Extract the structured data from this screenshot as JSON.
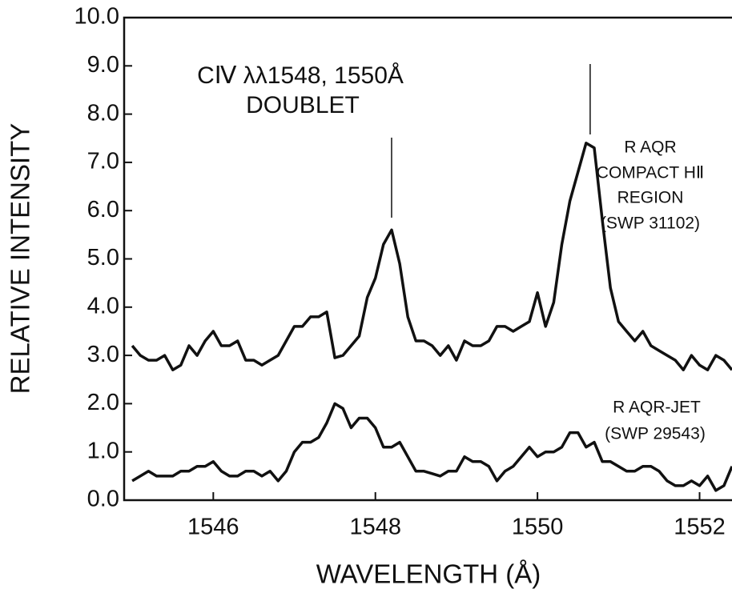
{
  "chart_data": {
    "type": "line",
    "title": "CⅣ λλ1548, 1550Å",
    "subtitle": "DOUBLET",
    "xlabel": "WAVELENGTH (Å)",
    "ylabel": "RELATIVE INTENSITY",
    "annotations": [
      "R AQR",
      "COMPACT HⅡ",
      "REGION",
      "(SWP 31102)",
      "R AQR-JET",
      "(SWP 29543)"
    ],
    "marker_lines": [
      1548.2,
      1550.65
    ],
    "xlim": [
      1544.9,
      1552.4
    ],
    "xticks": [
      1546,
      1548,
      1550,
      1552
    ],
    "ylim": [
      0,
      10
    ],
    "yticks": [
      {
        "value": 0,
        "label": "0.0"
      },
      {
        "value": 1,
        "label": "1.0"
      },
      {
        "value": 2,
        "label": "2.0"
      },
      {
        "value": 3,
        "label": "3.0"
      },
      {
        "value": 4,
        "label": "4.0"
      },
      {
        "value": 5,
        "label": "5.0"
      },
      {
        "value": 6,
        "label": "6.0"
      },
      {
        "value": 7,
        "label": "7.0"
      },
      {
        "value": 8,
        "label": "8.0"
      },
      {
        "value": 9,
        "label": "9.0"
      },
      {
        "value": 10,
        "label": "10.0"
      }
    ],
    "x": [
      1545.0,
      1545.1,
      1545.2,
      1545.3,
      1545.4,
      1545.5,
      1545.6,
      1545.7,
      1545.8,
      1545.9,
      1546.0,
      1546.1,
      1546.2,
      1546.3,
      1546.4,
      1546.5,
      1546.6,
      1546.7,
      1546.8,
      1546.9,
      1547.0,
      1547.1,
      1547.2,
      1547.3,
      1547.4,
      1547.5,
      1547.6,
      1547.7,
      1547.8,
      1547.9,
      1548.0,
      1548.1,
      1548.2,
      1548.3,
      1548.4,
      1548.5,
      1548.6,
      1548.7,
      1548.8,
      1548.9,
      1549.0,
      1549.1,
      1549.2,
      1549.3,
      1549.4,
      1549.5,
      1549.6,
      1549.7,
      1549.8,
      1549.9,
      1550.0,
      1550.1,
      1550.2,
      1550.3,
      1550.4,
      1550.5,
      1550.6,
      1550.7,
      1550.8,
      1550.9,
      1551.0,
      1551.1,
      1551.2,
      1551.3,
      1551.4,
      1551.5,
      1551.6,
      1551.7,
      1551.8,
      1551.9,
      1552.0,
      1552.1,
      1552.2,
      1552.3,
      1552.4
    ],
    "series": [
      {
        "name": "R AQR COMPACT HⅡ REGION (SWP 31102)",
        "color": "#111111",
        "values": [
          3.2,
          3.0,
          2.9,
          2.9,
          3.0,
          2.7,
          2.8,
          3.2,
          3.0,
          3.3,
          3.5,
          3.2,
          3.2,
          3.3,
          2.9,
          2.9,
          2.8,
          2.9,
          3.0,
          3.3,
          3.6,
          3.6,
          3.8,
          3.8,
          3.9,
          2.95,
          3.0,
          3.2,
          3.4,
          4.2,
          4.6,
          5.3,
          5.6,
          4.9,
          3.8,
          3.3,
          3.3,
          3.2,
          3.0,
          3.2,
          2.9,
          3.3,
          3.2,
          3.2,
          3.3,
          3.6,
          3.6,
          3.5,
          3.6,
          3.7,
          4.3,
          3.6,
          4.1,
          5.3,
          6.2,
          6.8,
          7.4,
          7.3,
          5.8,
          4.4,
          3.7,
          3.5,
          3.3,
          3.5,
          3.2,
          3.1,
          3.0,
          2.9,
          2.7,
          3.0,
          2.8,
          2.7,
          3.0,
          2.9,
          2.7
        ]
      },
      {
        "name": "R AQR-JET (SWP 29543)",
        "color": "#111111",
        "values": [
          0.4,
          0.5,
          0.6,
          0.5,
          0.5,
          0.5,
          0.6,
          0.6,
          0.7,
          0.7,
          0.8,
          0.6,
          0.5,
          0.5,
          0.6,
          0.6,
          0.5,
          0.6,
          0.4,
          0.6,
          1.0,
          1.2,
          1.2,
          1.3,
          1.6,
          2.0,
          1.9,
          1.5,
          1.7,
          1.7,
          1.5,
          1.1,
          1.1,
          1.2,
          0.9,
          0.6,
          0.6,
          0.55,
          0.5,
          0.6,
          0.6,
          0.9,
          0.8,
          0.8,
          0.7,
          0.4,
          0.6,
          0.7,
          0.9,
          1.1,
          0.9,
          1.0,
          1.0,
          1.1,
          1.4,
          1.4,
          1.1,
          1.2,
          0.8,
          0.8,
          0.7,
          0.6,
          0.6,
          0.7,
          0.7,
          0.6,
          0.4,
          0.3,
          0.3,
          0.4,
          0.3,
          0.5,
          0.2,
          0.3,
          0.7
        ]
      }
    ]
  }
}
